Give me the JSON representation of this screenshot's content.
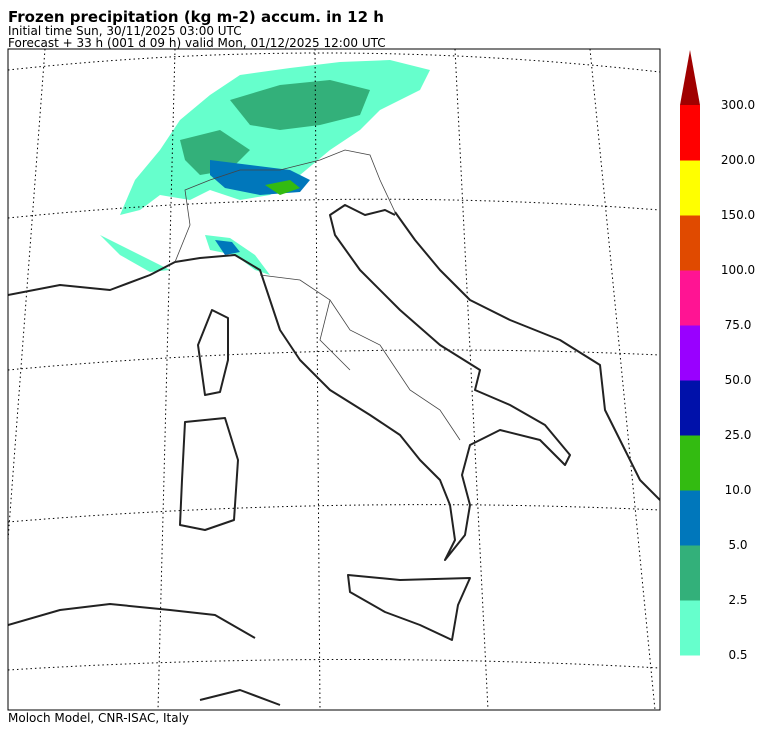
{
  "header": {
    "title": "Frozen precipitation (kg m-2) accum. in 12 h",
    "initial_time": "Initial time  Sun, 30/11/2025  03:00 UTC",
    "forecast": "Forecast  +  33 h  (001 d 09 h)  valid Mon, 01/12/2025 12:00 UTC"
  },
  "colorbar": {
    "labels": [
      "0.5",
      "2.5",
      "5.0",
      "10.0",
      "25.0",
      "50.0",
      "75.0",
      "100.0",
      "150.0",
      "200.0",
      "300.0"
    ],
    "colors": [
      "#66ffcc",
      "#33b07a",
      "#0077bb",
      "#33bb11",
      "#0011aa",
      "#9900ff",
      "#ff1493",
      "#e04a00",
      "#ffff00",
      "#ff0000"
    ],
    "over_color": "#a00000"
  },
  "footer": "Moloch Model, CNR-ISAC, Italy"
}
